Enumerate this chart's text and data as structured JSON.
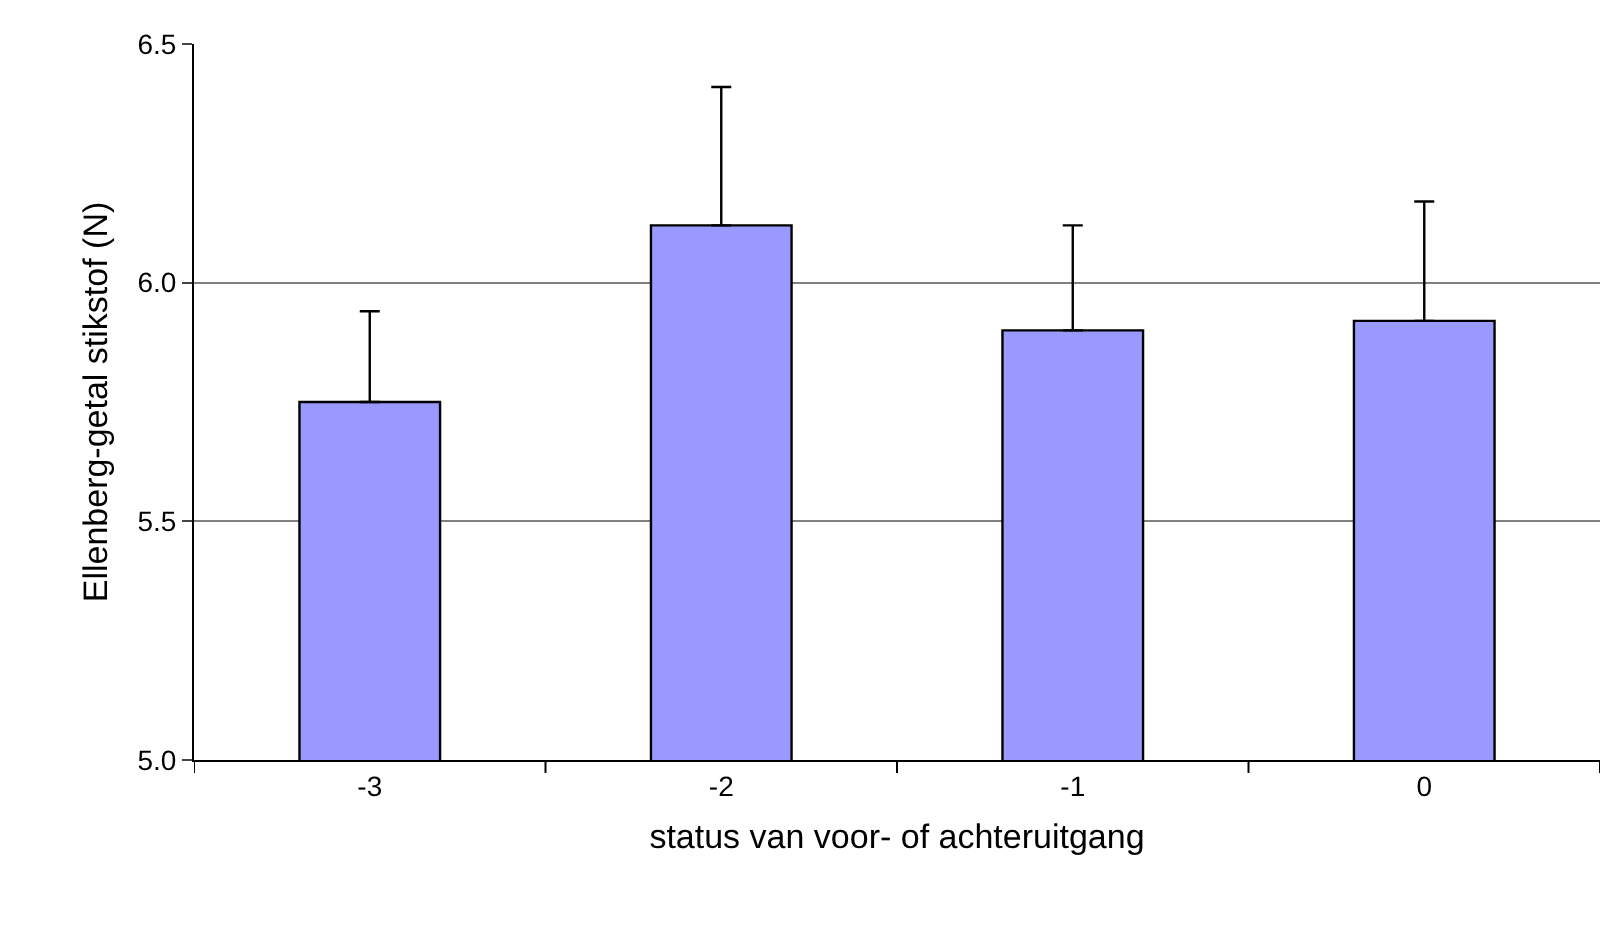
{
  "chart_data": {
    "type": "bar",
    "xlabel": "status van voor- of achteruitgang",
    "ylabel": "Ellenberg-getal stikstof (N)",
    "categories": [
      "-3",
      "-2",
      "-1",
      "0"
    ],
    "values": [
      5.75,
      6.12,
      5.9,
      5.92
    ],
    "errors": [
      [
        5.75,
        5.94
      ],
      [
        6.12,
        6.41
      ],
      [
        5.9,
        6.12
      ],
      [
        5.92,
        6.17
      ]
    ],
    "color": "#9999ff",
    "ylim": [
      5.0,
      6.5
    ],
    "yticks": [
      {
        "value": 5.0,
        "label": "5.0"
      },
      {
        "value": 5.5,
        "label": "5.5"
      },
      {
        "value": 6.0,
        "label": "6.0"
      },
      {
        "value": 6.5,
        "label": "6.5"
      }
    ],
    "grid": "y"
  }
}
